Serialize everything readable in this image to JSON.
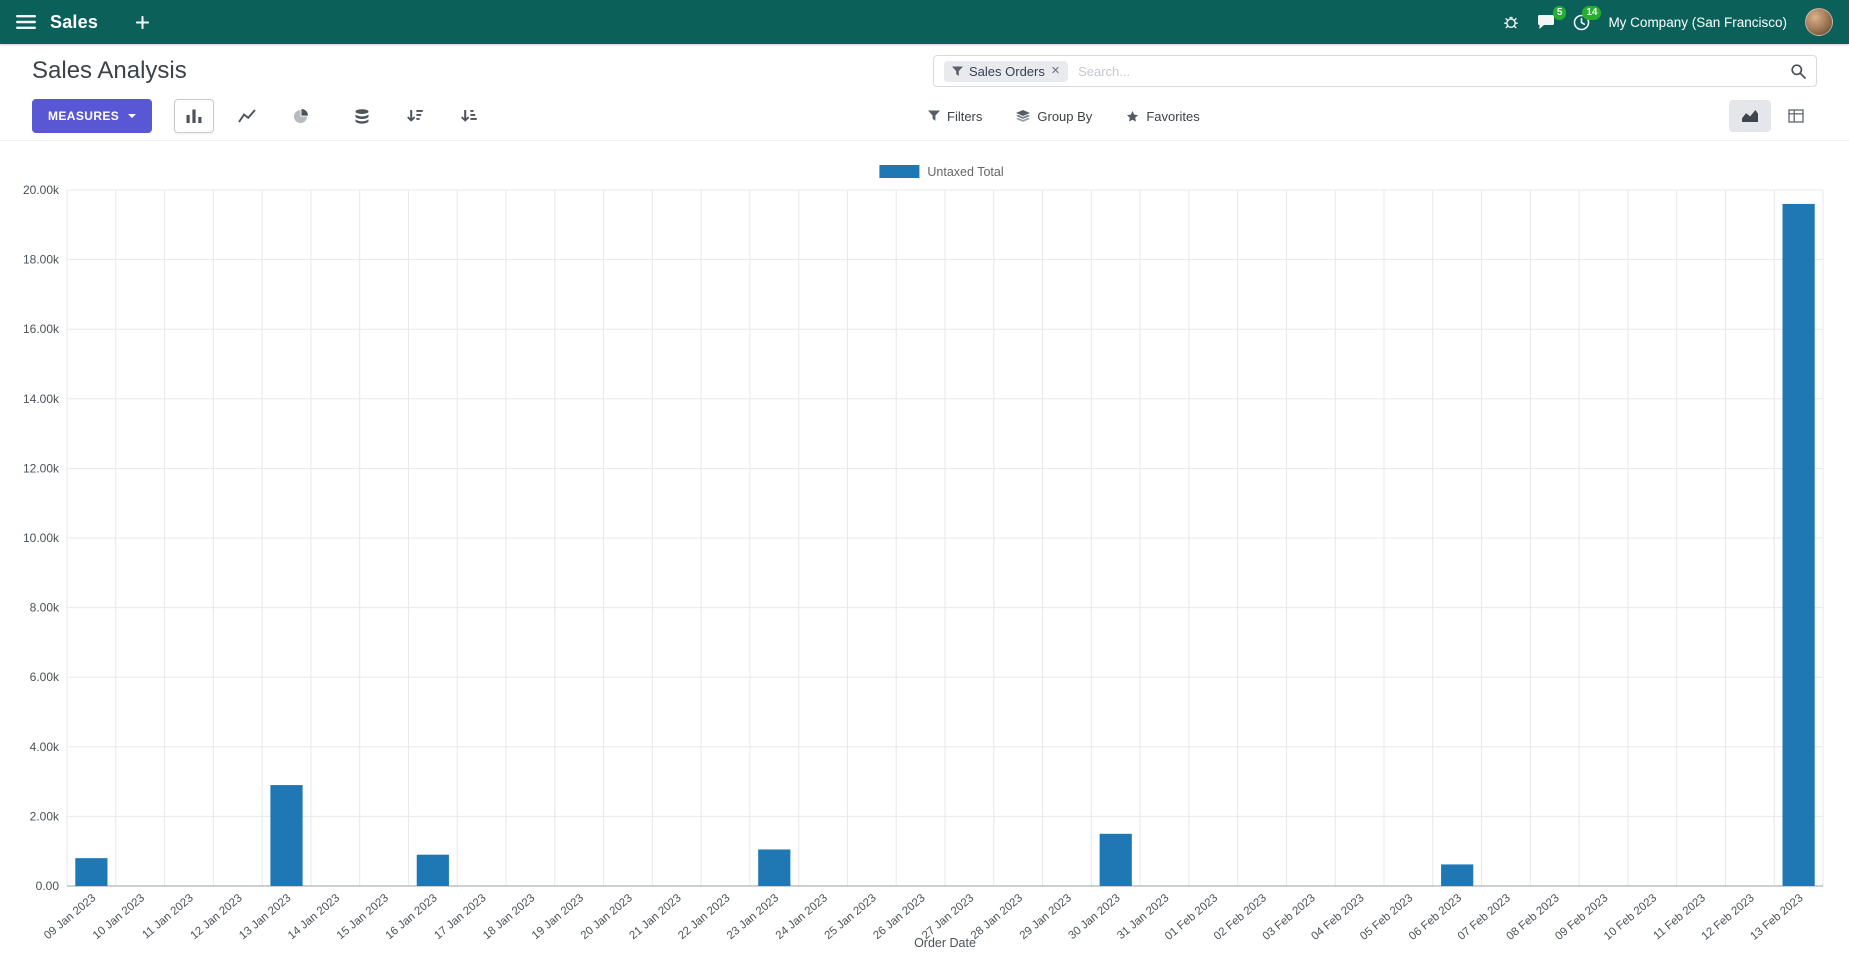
{
  "colors": {
    "navbar_bg": "#0b605a",
    "primary_button": "#5a57d4",
    "bar": "#1f77b4",
    "badge": "#28b42c"
  },
  "navbar": {
    "app_name": "Sales",
    "company": "My Company (San Francisco)",
    "messages_badge": "5",
    "activities_badge": "14"
  },
  "control_panel": {
    "title": "Sales Analysis",
    "search": {
      "facet_label": "Sales Orders",
      "remove_icon": "✕",
      "placeholder": "Search..."
    },
    "measures_label": "MEASURES",
    "filters_label": "Filters",
    "group_by_label": "Group By",
    "favorites_label": "Favorites"
  },
  "chart_data": {
    "type": "bar",
    "title": "",
    "categories": [
      "09 Jan 2023",
      "10 Jan 2023",
      "11 Jan 2023",
      "12 Jan 2023",
      "13 Jan 2023",
      "14 Jan 2023",
      "15 Jan 2023",
      "16 Jan 2023",
      "17 Jan 2023",
      "18 Jan 2023",
      "19 Jan 2023",
      "20 Jan 2023",
      "21 Jan 2023",
      "22 Jan 2023",
      "23 Jan 2023",
      "24 Jan 2023",
      "25 Jan 2023",
      "26 Jan 2023",
      "27 Jan 2023",
      "28 Jan 2023",
      "29 Jan 2023",
      "30 Jan 2023",
      "31 Jan 2023",
      "01 Feb 2023",
      "02 Feb 2023",
      "03 Feb 2023",
      "04 Feb 2023",
      "05 Feb 2023",
      "06 Feb 2023",
      "07 Feb 2023",
      "08 Feb 2023",
      "09 Feb 2023",
      "10 Feb 2023",
      "11 Feb 2023",
      "12 Feb 2023",
      "13 Feb 2023"
    ],
    "series": [
      {
        "name": "Untaxed Total",
        "values": [
          800,
          0,
          0,
          0,
          2900,
          0,
          0,
          900,
          0,
          0,
          0,
          0,
          0,
          0,
          1050,
          0,
          0,
          0,
          0,
          0,
          0,
          1500,
          0,
          0,
          0,
          0,
          0,
          0,
          620,
          0,
          0,
          0,
          0,
          0,
          0,
          19600
        ]
      }
    ],
    "xlabel": "Order Date",
    "ylabel": "",
    "ylim": [
      0,
      20000
    ],
    "y_ticks": [
      "0.00",
      "2.00k",
      "4.00k",
      "6.00k",
      "8.00k",
      "10.00k",
      "12.00k",
      "14.00k",
      "16.00k",
      "18.00k",
      "20.00k"
    ],
    "legend_position": "top",
    "grid": true,
    "bar_color": "#1f77b4"
  }
}
